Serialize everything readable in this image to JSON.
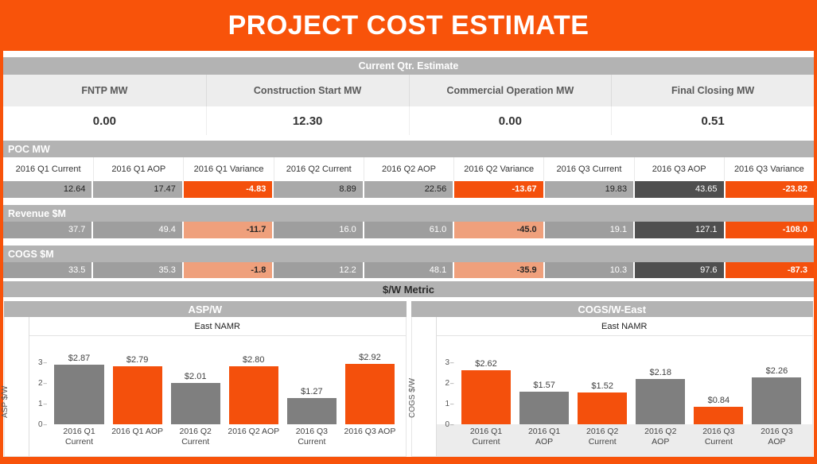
{
  "colors": {
    "orange": "#f4500c",
    "salmon": "#efa07c",
    "cell_gray": "#a9a9a9",
    "cell_gray_rev": "#9e9e9e",
    "cell_dark": "#4f4f4f",
    "bar_gray": "#7f7f7f",
    "section_bar": "#b3b3b3"
  },
  "banner": {
    "title": "PROJECT COST ESTIMATE"
  },
  "current_qtr": {
    "section_title": "Current Qtr. Estimate",
    "metrics": [
      {
        "label": "FNTP MW",
        "value": "0.00"
      },
      {
        "label": "Construction Start MW",
        "value": "12.30"
      },
      {
        "label": "Commercial Operation MW",
        "value": "0.00"
      },
      {
        "label": "Final Closing MW",
        "value": "0.51"
      }
    ]
  },
  "matrix": {
    "columns": [
      "2016 Q1 Current",
      "2016 Q1 AOP",
      "2016 Q1 Variance",
      "2016 Q2 Current",
      "2016 Q2 AOP",
      "2016 Q2 Variance",
      "2016 Q3 Current",
      "2016 Q3 AOP",
      "2016 Q3 Variance"
    ],
    "rows": [
      {
        "section_title": "POC MW",
        "cells": [
          {
            "value": "12.64",
            "style": "gray"
          },
          {
            "value": "17.47",
            "style": "gray"
          },
          {
            "value": "-4.83",
            "style": "orange"
          },
          {
            "value": "8.89",
            "style": "gray"
          },
          {
            "value": "22.56",
            "style": "gray"
          },
          {
            "value": "-13.67",
            "style": "orange"
          },
          {
            "value": "19.83",
            "style": "gray"
          },
          {
            "value": "43.65",
            "style": "dark"
          },
          {
            "value": "-23.82",
            "style": "orange"
          }
        ]
      },
      {
        "section_title": "Revenue $M",
        "cells": [
          {
            "value": "37.7",
            "style": "grayLight"
          },
          {
            "value": "49.4",
            "style": "grayLight"
          },
          {
            "value": "-11.7",
            "style": "salmon"
          },
          {
            "value": "16.0",
            "style": "grayLight"
          },
          {
            "value": "61.0",
            "style": "grayLight"
          },
          {
            "value": "-45.0",
            "style": "salmon"
          },
          {
            "value": "19.1",
            "style": "grayLight"
          },
          {
            "value": "127.1",
            "style": "dark"
          },
          {
            "value": "-108.0",
            "style": "orange"
          }
        ]
      },
      {
        "section_title": "COGS $M",
        "cells": [
          {
            "value": "33.5",
            "style": "grayLight"
          },
          {
            "value": "35.3",
            "style": "grayLight"
          },
          {
            "value": "-1.8",
            "style": "salmon"
          },
          {
            "value": "12.2",
            "style": "grayLight"
          },
          {
            "value": "48.1",
            "style": "grayLight"
          },
          {
            "value": "-35.9",
            "style": "salmon"
          },
          {
            "value": "10.3",
            "style": "grayLight"
          },
          {
            "value": "97.6",
            "style": "dark"
          },
          {
            "value": "-87.3",
            "style": "orange"
          }
        ]
      }
    ]
  },
  "metric_section": {
    "title": "$/W Metric"
  },
  "chart_data": [
    {
      "type": "bar",
      "title": "ASP/W",
      "subtitle": "East NAMR",
      "ylabel": "ASP $/W",
      "ylim": [
        0,
        3
      ],
      "yticks": [
        0,
        1,
        2,
        3
      ],
      "categories": [
        [
          "2016 Q1",
          "Current"
        ],
        [
          "2016 Q1 AOP"
        ],
        [
          "2016 Q2",
          "Current"
        ],
        [
          "2016 Q2 AOP"
        ],
        [
          "2016 Q3",
          "Current"
        ],
        [
          "2016 Q3 AOP"
        ]
      ],
      "values": [
        2.87,
        2.79,
        2.01,
        2.8,
        1.27,
        2.92
      ],
      "labels": [
        "$2.87",
        "$2.79",
        "$2.01",
        "$2.80",
        "$1.27",
        "$2.92"
      ],
      "bar_colors": [
        "gray",
        "orange",
        "gray",
        "orange",
        "gray",
        "orange"
      ]
    },
    {
      "type": "bar",
      "title": "COGS/W-East",
      "subtitle": "East NAMR",
      "ylabel": "COGS $/W",
      "ylim": [
        0,
        3
      ],
      "yticks": [
        0,
        1,
        2,
        3
      ],
      "categories": [
        [
          "2016 Q1",
          "Current"
        ],
        [
          "2016 Q1",
          "AOP"
        ],
        [
          "2016 Q2",
          "Current"
        ],
        [
          "2016 Q2",
          "AOP"
        ],
        [
          "2016 Q3",
          "Current"
        ],
        [
          "2016 Q3",
          "AOP"
        ]
      ],
      "values": [
        2.62,
        1.57,
        1.52,
        2.18,
        0.84,
        2.26
      ],
      "labels": [
        "$2.62",
        "$1.57",
        "$1.52",
        "$2.18",
        "$0.84",
        "$2.26"
      ],
      "bar_colors": [
        "orange",
        "gray",
        "orange",
        "gray",
        "orange",
        "gray"
      ]
    }
  ]
}
